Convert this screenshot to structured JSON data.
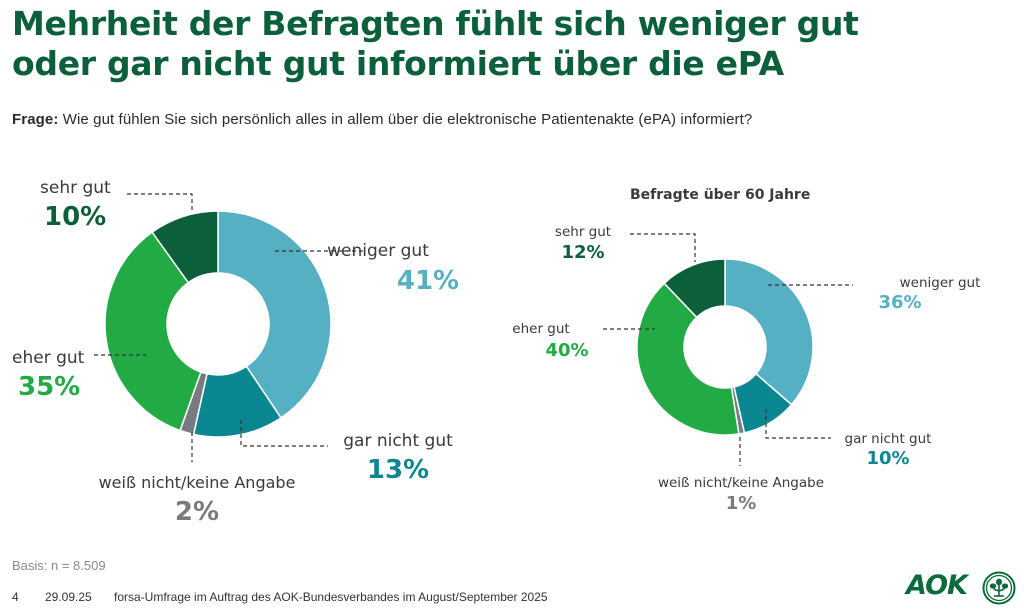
{
  "header": {
    "title_line1": "Mehrheit der Befragten fühlt sich weniger gut",
    "title_line2": "oder gar nicht gut informiert über die ePA",
    "question_label": "Frage:",
    "question_text": "Wie gut fühlen Sie sich persönlich alles in allem über die elektronische Patientenakte (ePA) informiert?"
  },
  "colors": {
    "title": "#0b5f3a",
    "sehr_gut": "#0b5f3a",
    "weniger_gut": "#55b0c3",
    "gar_nicht_gut": "#0a8790",
    "weiss_nicht": "#777b80",
    "eher_gut": "#22aa44"
  },
  "chart_data": [
    {
      "type": "pie",
      "variant": "donut",
      "title": "",
      "categories": [
        "weniger gut",
        "gar nicht gut",
        "weiß nicht/keine Angabe",
        "eher gut",
        "sehr gut"
      ],
      "values": [
        41,
        13,
        2,
        35,
        10
      ],
      "labels": [
        "41%",
        "13%",
        "2%",
        "35%",
        "10%"
      ],
      "colors": [
        "#55b0c3",
        "#0a8790",
        "#777b80",
        "#22aa44",
        "#0b5f3a"
      ],
      "start": "12 o'clock, clockwise"
    },
    {
      "type": "pie",
      "variant": "donut",
      "title": "Befragte über 60 Jahre",
      "categories": [
        "weniger gut",
        "gar nicht gut",
        "weiß nicht/keine Angabe",
        "eher gut",
        "sehr gut"
      ],
      "values": [
        36,
        10,
        1,
        40,
        12
      ],
      "labels": [
        "36%",
        "10%",
        "1%",
        "40%",
        "12%"
      ],
      "colors": [
        "#55b0c3",
        "#0a8790",
        "#777b80",
        "#22aa44",
        "#0b5f3a"
      ],
      "start": "12 o'clock, clockwise"
    }
  ],
  "footer": {
    "basis": "Basis: n = 8.509",
    "page_number": "4",
    "date": "29.09.25",
    "source": "forsa-Umfrage im Auftrag des AOK-Bundesverbandes im August/September 2025",
    "logo_text": "AOK"
  }
}
